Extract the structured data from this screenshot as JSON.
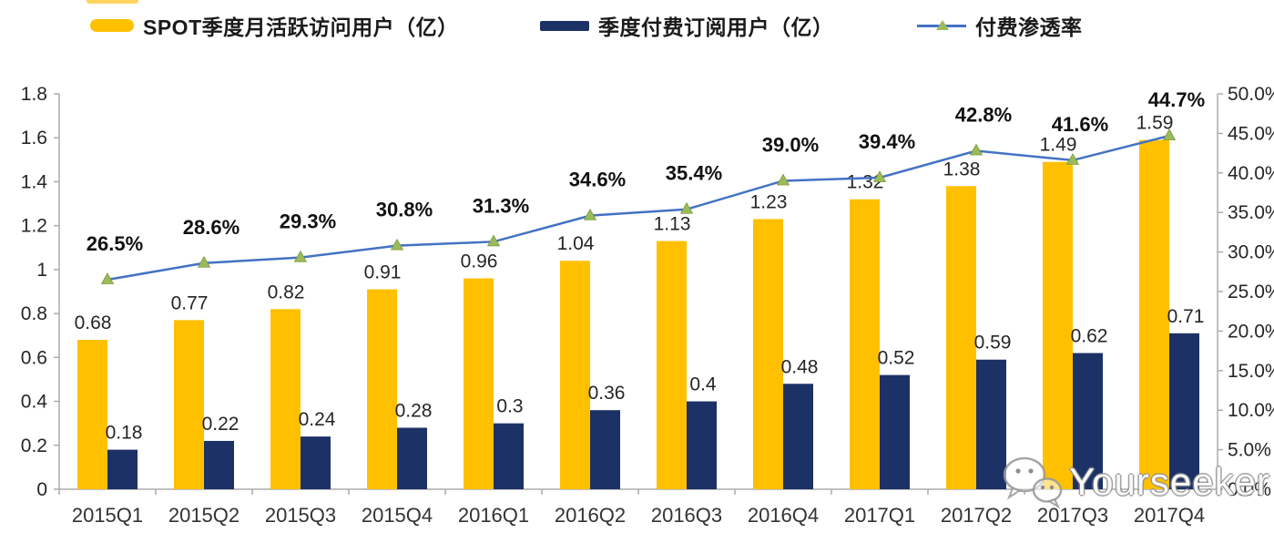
{
  "legend": {
    "items": [
      {
        "label": "SPOT季度月活跃访问用户（亿）",
        "swatch": "bar",
        "color": "#ffc000"
      },
      {
        "label": "季度付费订阅用户（亿）",
        "swatch": "bar",
        "color": "#1c3166"
      },
      {
        "label": "付费渗透率",
        "swatch": "line",
        "color": "#4472c4",
        "marker_color": "#9bbb59"
      }
    ]
  },
  "chart_data": {
    "type": "bar",
    "subtype": "grouped-bars-with-line",
    "categories": [
      "2015Q1",
      "2015Q2",
      "2015Q3",
      "2015Q4",
      "2016Q1",
      "2016Q2",
      "2016Q3",
      "2016Q4",
      "2017Q1",
      "2017Q2",
      "2017Q3",
      "2017Q4"
    ],
    "series": [
      {
        "name": "SPOT季度月活跃访问用户（亿）",
        "type": "bar",
        "axis": "left",
        "color": "#ffc000",
        "values": [
          0.68,
          0.77,
          0.82,
          0.91,
          0.96,
          1.04,
          1.13,
          1.23,
          1.32,
          1.38,
          1.49,
          1.59
        ],
        "labels": [
          "0.68",
          "0.77",
          "0.82",
          "0.91",
          "0.96",
          "1.04",
          "1.13",
          "1.23",
          "1.32",
          "1.38",
          "1.49",
          "1.59"
        ]
      },
      {
        "name": "季度付费订阅用户（亿）",
        "type": "bar",
        "axis": "left",
        "color": "#1c3166",
        "values": [
          0.18,
          0.22,
          0.24,
          0.28,
          0.3,
          0.36,
          0.4,
          0.48,
          0.52,
          0.59,
          0.62,
          0.71
        ],
        "labels": [
          "0.18",
          "0.22",
          "0.24",
          "0.28",
          "0.3",
          "0.36",
          "0.4",
          "0.48",
          "0.52",
          "0.59",
          "0.62",
          "0.71"
        ]
      },
      {
        "name": "付费渗透率",
        "type": "line",
        "axis": "right",
        "color": "#4472c4",
        "marker": "triangle",
        "marker_color": "#9bbb59",
        "values": [
          26.5,
          28.6,
          29.3,
          30.8,
          31.3,
          34.6,
          35.4,
          39.0,
          39.4,
          42.8,
          41.6,
          44.7
        ],
        "labels": [
          "26.5%",
          "28.6%",
          "29.3%",
          "30.8%",
          "31.3%",
          "34.6%",
          "35.4%",
          "39.0%",
          "39.4%",
          "42.8%",
          "41.6%",
          "44.7%"
        ]
      }
    ],
    "left_axis": {
      "min": 0,
      "max": 1.8,
      "ticks": [
        {
          "label": "1.8",
          "value": 1.8
        },
        {
          "label": "1.6",
          "value": 1.6
        },
        {
          "label": "1.4",
          "value": 1.4
        },
        {
          "label": "1.2",
          "value": 1.2
        },
        {
          "label": "1",
          "value": 1.0
        },
        {
          "label": "0.8",
          "value": 0.8
        },
        {
          "label": "0.6",
          "value": 0.6
        },
        {
          "label": "0.4",
          "value": 0.4
        },
        {
          "label": "0.2",
          "value": 0.2
        },
        {
          "label": "0",
          "value": 0
        }
      ]
    },
    "right_axis": {
      "min": 0,
      "max": 50,
      "ticks": [
        {
          "label": "50.0%",
          "value": 50
        },
        {
          "label": "45.0%",
          "value": 45
        },
        {
          "label": "40.0%",
          "value": 40
        },
        {
          "label": "35.0%",
          "value": 35
        },
        {
          "label": "30.0%",
          "value": 30
        },
        {
          "label": "25.0%",
          "value": 25
        },
        {
          "label": "20.0%",
          "value": 20
        },
        {
          "label": "15.0%",
          "value": 15
        },
        {
          "label": "10.0%",
          "value": 10
        },
        {
          "label": "5.0%",
          "value": 5
        },
        {
          "label": "0.0%",
          "value": 0
        }
      ]
    },
    "grid": false,
    "legend_position": "top",
    "axis_color": "#ababab",
    "label_color": "#262626",
    "title": ""
  },
  "watermark": {
    "text": "Yourseeker",
    "icon": "wechat-icon"
  }
}
